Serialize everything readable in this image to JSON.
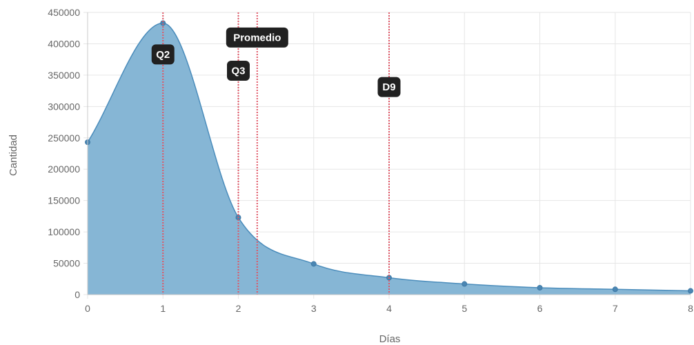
{
  "chart_data": {
    "type": "area",
    "xlabel": "Días",
    "ylabel": "Cantidad",
    "x": [
      0,
      1,
      2,
      3,
      4,
      5,
      6,
      7,
      8
    ],
    "values": [
      243000,
      433000,
      123000,
      49000,
      27000,
      17000,
      11000,
      8500,
      6000
    ],
    "xlim": [
      0,
      8
    ],
    "ylim": [
      0,
      450000
    ],
    "xticks": [
      "0",
      "1",
      "2",
      "3",
      "4",
      "5",
      "6",
      "7",
      "8"
    ],
    "yticks": [
      "0",
      "50000",
      "100000",
      "150000",
      "200000",
      "250000",
      "300000",
      "350000",
      "400000",
      "450000"
    ],
    "grid": true,
    "legend": "none",
    "colors": {
      "fill": "#86b6d5",
      "line": "#4a8cbb",
      "point": "#4a86b3",
      "annotation_line": "#e05565",
      "annotation_bg": "#212121",
      "grid": "#e6e6e6",
      "text": "#666666"
    },
    "annotations": [
      {
        "label": "Q2",
        "x": 1.0,
        "label_y": 383000
      },
      {
        "label": "Q3",
        "x": 2.0,
        "label_y": 357000
      },
      {
        "label": "Promedio",
        "x": 2.25,
        "label_y": 410000
      },
      {
        "label": "D9",
        "x": 4.0,
        "label_y": 331000
      }
    ]
  }
}
